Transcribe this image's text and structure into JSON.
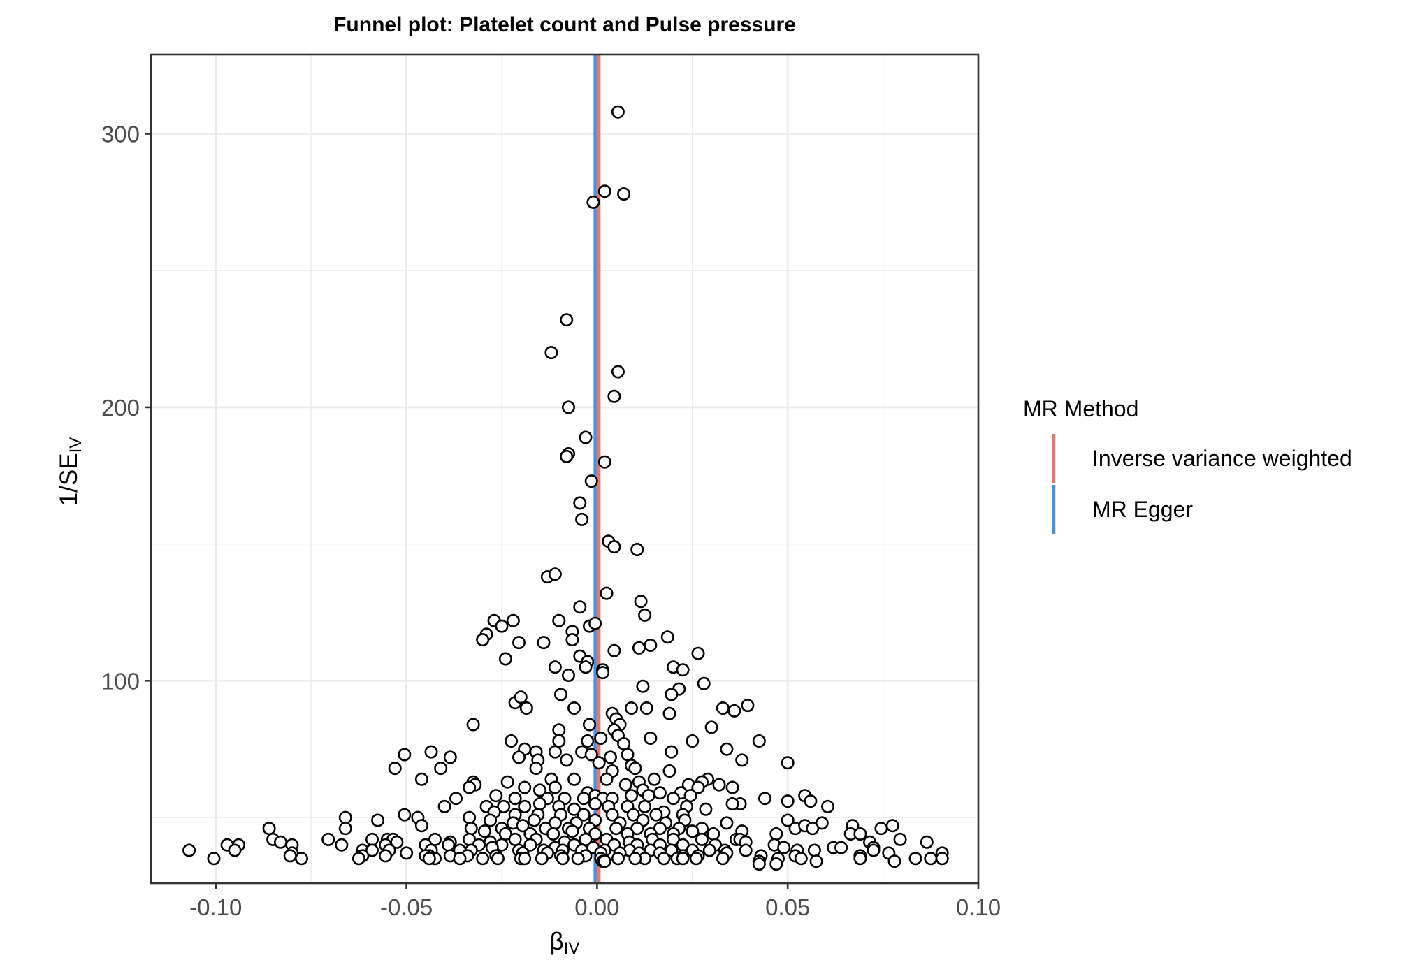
{
  "chart_data": {
    "type": "scatter",
    "title": "Funnel plot: Platelet count and Pulse pressure",
    "xlabel_main": "β",
    "xlabel_sub": "IV",
    "ylabel_main": "1/SE",
    "ylabel_sub": "IV",
    "xlim": [
      -0.117,
      0.1
    ],
    "ylim": [
      26,
      329
    ],
    "x_ticks": [
      -0.1,
      -0.05,
      0.0,
      0.05,
      0.1
    ],
    "x_tick_labels": [
      "-0.10",
      "-0.05",
      "0.00",
      "0.05",
      "0.10"
    ],
    "y_ticks": [
      100,
      200,
      300
    ],
    "y_tick_labels": [
      "100",
      "200",
      "300"
    ],
    "grid": true,
    "legend": {
      "title": "MR Method",
      "position": "right",
      "entries": [
        {
          "name": "Inverse variance weighted",
          "color": "#E8766D"
        },
        {
          "name": "MR Egger",
          "color": "#4A90E2"
        }
      ]
    },
    "lines": [
      {
        "name": "Inverse variance weighted",
        "x": 0.0005,
        "color": "#E8766D"
      },
      {
        "name": "MR Egger",
        "x": -0.0005,
        "color": "#4A90E2"
      }
    ],
    "points": [
      [
        0.0055,
        308
      ],
      [
        0.002,
        279
      ],
      [
        0.007,
        278
      ],
      [
        -0.001,
        275
      ],
      [
        -0.008,
        232
      ],
      [
        -0.012,
        220
      ],
      [
        0.0055,
        213
      ],
      [
        -0.0075,
        200
      ],
      [
        0.0045,
        204
      ],
      [
        -0.003,
        189
      ],
      [
        -0.0075,
        183
      ],
      [
        -0.008,
        182
      ],
      [
        0.002,
        180
      ],
      [
        -0.0015,
        173
      ],
      [
        -0.0045,
        165
      ],
      [
        -0.004,
        159
      ],
      [
        0.003,
        151
      ],
      [
        0.0045,
        149
      ],
      [
        0.0105,
        148
      ],
      [
        -0.013,
        138
      ],
      [
        -0.011,
        139
      ],
      [
        0.0025,
        132
      ],
      [
        -0.0045,
        127
      ],
      [
        0.0115,
        129
      ],
      [
        -0.027,
        122
      ],
      [
        -0.022,
        122
      ],
      [
        -0.025,
        120
      ],
      [
        -0.01,
        122
      ],
      [
        -0.0065,
        118
      ],
      [
        -0.029,
        117
      ],
      [
        -0.03,
        115
      ],
      [
        -0.0205,
        114
      ],
      [
        -0.0065,
        115
      ],
      [
        -0.002,
        120
      ],
      [
        -0.0005,
        121
      ],
      [
        0.0125,
        124
      ],
      [
        0.0185,
        116
      ],
      [
        -0.014,
        114
      ],
      [
        0.011,
        112
      ],
      [
        0.014,
        113
      ],
      [
        0.0045,
        111
      ],
      [
        0.0265,
        110
      ],
      [
        -0.024,
        108
      ],
      [
        -0.0045,
        109
      ],
      [
        -0.0025,
        107
      ],
      [
        -0.011,
        105
      ],
      [
        -0.003,
        105
      ],
      [
        0.0015,
        104
      ],
      [
        0.02,
        105
      ],
      [
        0.0225,
        104
      ],
      [
        0.0015,
        103
      ],
      [
        -0.0075,
        102
      ],
      [
        0.012,
        98
      ],
      [
        0.0215,
        97
      ],
      [
        0.028,
        99
      ],
      [
        0.0195,
        95
      ],
      [
        -0.0095,
        95
      ],
      [
        -0.0215,
        92
      ],
      [
        -0.02,
        94
      ],
      [
        -0.0185,
        90
      ],
      [
        -0.006,
        90
      ],
      [
        0.009,
        90
      ],
      [
        0.013,
        90
      ],
      [
        0.033,
        90
      ],
      [
        0.036,
        89
      ],
      [
        0.0395,
        91
      ],
      [
        0.019,
        88
      ],
      [
        0.004,
        88
      ],
      [
        0.005,
        86
      ],
      [
        -0.0325,
        84
      ],
      [
        0.006,
        84
      ],
      [
        0.0045,
        82
      ],
      [
        -0.002,
        84
      ],
      [
        -0.01,
        82
      ],
      [
        0.03,
        83
      ],
      [
        -0.0225,
        78
      ],
      [
        -0.01,
        78
      ],
      [
        -0.0025,
        78
      ],
      [
        0.001,
        79
      ],
      [
        0.0055,
        80
      ],
      [
        0.007,
        77
      ],
      [
        0.014,
        79
      ],
      [
        0.025,
        78
      ],
      [
        0.0425,
        78
      ],
      [
        -0.019,
        75
      ],
      [
        -0.016,
        74
      ],
      [
        -0.011,
        74
      ],
      [
        -0.004,
        74
      ],
      [
        -0.0015,
        73
      ],
      [
        0.008,
        73
      ],
      [
        0.0195,
        74
      ],
      [
        0.034,
        75
      ],
      [
        -0.0435,
        74
      ],
      [
        -0.0505,
        73
      ],
      [
        -0.0385,
        72
      ],
      [
        -0.0205,
        72
      ],
      [
        -0.0155,
        71
      ],
      [
        -0.008,
        71
      ],
      [
        0.0005,
        70
      ],
      [
        0.0035,
        72
      ],
      [
        0.009,
        69
      ],
      [
        0.01,
        68
      ],
      [
        0.038,
        71
      ],
      [
        0.05,
        70
      ],
      [
        -0.053,
        68
      ],
      [
        -0.041,
        68
      ],
      [
        -0.016,
        68
      ],
      [
        0.004,
        67
      ],
      [
        0.015,
        64
      ],
      [
        0.019,
        67
      ],
      [
        0.029,
        64
      ],
      [
        -0.046,
        64
      ],
      [
        -0.0325,
        63
      ],
      [
        -0.032,
        62
      ],
      [
        -0.0235,
        63
      ],
      [
        -0.012,
        64
      ],
      [
        -0.006,
        64
      ],
      [
        0.0025,
        64
      ],
      [
        0.011,
        63
      ],
      [
        0.024,
        62
      ],
      [
        0.0275,
        63
      ],
      [
        0.032,
        62
      ],
      [
        0.0355,
        61
      ],
      [
        -0.0335,
        61
      ],
      [
        -0.019,
        61
      ],
      [
        -0.015,
        60
      ],
      [
        -0.011,
        61
      ],
      [
        -0.0025,
        59
      ],
      [
        -0.0005,
        58
      ],
      [
        0.0075,
        62
      ],
      [
        0.012,
        60
      ],
      [
        0.0165,
        59
      ],
      [
        0.022,
        59
      ],
      [
        0.0265,
        61
      ],
      [
        0.0545,
        58
      ],
      [
        -0.037,
        57
      ],
      [
        -0.0265,
        58
      ],
      [
        -0.0215,
        57
      ],
      [
        -0.013,
        57
      ],
      [
        -0.0085,
        57
      ],
      [
        -0.0035,
        57
      ],
      [
        0.0015,
        57
      ],
      [
        0.004,
        57
      ],
      [
        0.009,
        58
      ],
      [
        0.0135,
        58
      ],
      [
        0.02,
        57
      ],
      [
        0.0245,
        58
      ],
      [
        0.0375,
        55
      ],
      [
        0.044,
        57
      ],
      [
        0.05,
        56
      ],
      [
        0.056,
        56
      ],
      [
        -0.04,
        54
      ],
      [
        -0.029,
        54
      ],
      [
        -0.0245,
        54
      ],
      [
        -0.019,
        54
      ],
      [
        -0.015,
        55
      ],
      [
        -0.01,
        54
      ],
      [
        -0.006,
        53
      ],
      [
        -0.0005,
        55
      ],
      [
        0.003,
        54
      ],
      [
        0.008,
        54
      ],
      [
        0.0125,
        54
      ],
      [
        0.0175,
        52
      ],
      [
        0.0235,
        54
      ],
      [
        0.0285,
        53
      ],
      [
        0.0355,
        55
      ],
      [
        0.0605,
        54
      ],
      [
        -0.027,
        52
      ],
      [
        -0.0215,
        51
      ],
      [
        -0.0155,
        51
      ],
      [
        -0.0095,
        51
      ],
      [
        -0.0035,
        51
      ],
      [
        0.004,
        51
      ],
      [
        0.0095,
        51
      ],
      [
        0.0155,
        51
      ],
      [
        0.0225,
        51
      ],
      [
        -0.066,
        50
      ],
      [
        -0.0505,
        51
      ],
      [
        -0.047,
        50
      ],
      [
        -0.0575,
        49
      ],
      [
        -0.0335,
        50
      ],
      [
        -0.028,
        49
      ],
      [
        -0.022,
        48
      ],
      [
        -0.0165,
        49
      ],
      [
        -0.011,
        48
      ],
      [
        -0.0055,
        48
      ],
      [
        -0.0005,
        49
      ],
      [
        0.006,
        48
      ],
      [
        0.012,
        49
      ],
      [
        0.018,
        48
      ],
      [
        0.023,
        49
      ],
      [
        0.034,
        48
      ],
      [
        0.05,
        49
      ],
      [
        0.059,
        48
      ],
      [
        -0.086,
        46
      ],
      [
        -0.066,
        46
      ],
      [
        -0.046,
        47
      ],
      [
        -0.033,
        46
      ],
      [
        -0.025,
        46
      ],
      [
        -0.0195,
        47
      ],
      [
        -0.0135,
        46
      ],
      [
        -0.0075,
        46
      ],
      [
        -0.002,
        46
      ],
      [
        0.005,
        46
      ],
      [
        0.0105,
        46
      ],
      [
        0.0165,
        46
      ],
      [
        0.0215,
        46
      ],
      [
        0.0275,
        46
      ],
      [
        0.038,
        45
      ],
      [
        0.052,
        46
      ],
      [
        0.0545,
        47
      ],
      [
        0.0565,
        46
      ],
      [
        0.067,
        47
      ],
      [
        0.0745,
        46
      ],
      [
        0.0775,
        47
      ],
      [
        -0.0295,
        45
      ],
      [
        -0.024,
        44
      ],
      [
        -0.0175,
        44
      ],
      [
        -0.0115,
        44
      ],
      [
        -0.0065,
        45
      ],
      [
        -0.0005,
        44
      ],
      [
        0.008,
        44
      ],
      [
        0.014,
        44
      ],
      [
        0.02,
        44
      ],
      [
        0.025,
        45
      ],
      [
        0.0305,
        44
      ],
      [
        0.047,
        44
      ],
      [
        0.0665,
        44
      ],
      [
        0.069,
        44
      ],
      [
        -0.085,
        42
      ],
      [
        -0.083,
        41
      ],
      [
        -0.0705,
        42
      ],
      [
        -0.059,
        42
      ],
      [
        -0.055,
        42
      ],
      [
        -0.0535,
        42
      ],
      [
        -0.0425,
        42
      ],
      [
        -0.0385,
        41
      ],
      [
        -0.0335,
        42
      ],
      [
        -0.028,
        41
      ],
      [
        -0.0215,
        42
      ],
      [
        -0.016,
        42
      ],
      [
        -0.0085,
        41
      ],
      [
        -0.003,
        42
      ],
      [
        0.0025,
        42
      ],
      [
        0.0085,
        41
      ],
      [
        0.0145,
        42
      ],
      [
        0.02,
        42
      ],
      [
        0.0275,
        42
      ],
      [
        0.0365,
        42
      ],
      [
        0.0375,
        42
      ],
      [
        0.0465,
        40
      ],
      [
        0.0715,
        41
      ],
      [
        0.0795,
        42
      ],
      [
        0.0865,
        41
      ],
      [
        -0.097,
        40
      ],
      [
        -0.094,
        40
      ],
      [
        -0.08,
        40
      ],
      [
        -0.067,
        40
      ],
      [
        -0.0555,
        40
      ],
      [
        -0.0525,
        41
      ],
      [
        -0.045,
        40
      ],
      [
        -0.039,
        40
      ],
      [
        -0.031,
        40
      ],
      [
        -0.025,
        40
      ],
      [
        -0.0175,
        40
      ],
      [
        -0.011,
        39
      ],
      [
        -0.006,
        40
      ],
      [
        -0.001,
        39
      ],
      [
        0.0045,
        40
      ],
      [
        0.0105,
        40
      ],
      [
        0.0165,
        40
      ],
      [
        0.0225,
        40
      ],
      [
        0.031,
        40
      ],
      [
        0.039,
        41
      ],
      [
        0.049,
        39
      ],
      [
        0.0725,
        39
      ],
      [
        -0.107,
        38
      ],
      [
        -0.095,
        38
      ],
      [
        -0.08,
        37
      ],
      [
        -0.0615,
        38
      ],
      [
        -0.059,
        38
      ],
      [
        -0.0545,
        38
      ],
      [
        -0.0435,
        38
      ],
      [
        -0.036,
        38
      ],
      [
        -0.033,
        38
      ],
      [
        -0.0275,
        39
      ],
      [
        -0.0205,
        38
      ],
      [
        -0.014,
        38
      ],
      [
        -0.009,
        38
      ],
      [
        -0.004,
        38
      ],
      [
        0.002,
        38
      ],
      [
        0.0085,
        38
      ],
      [
        0.014,
        38
      ],
      [
        0.0195,
        38
      ],
      [
        0.025,
        38
      ],
      [
        0.0295,
        38
      ],
      [
        0.0335,
        38
      ],
      [
        0.039,
        38
      ],
      [
        0.0525,
        38
      ],
      [
        0.057,
        38
      ],
      [
        0.062,
        39
      ],
      [
        0.064,
        39
      ],
      [
        0.0725,
        38
      ],
      [
        0.0905,
        37
      ],
      [
        -0.0775,
        35
      ],
      [
        -0.0615,
        36
      ],
      [
        -0.0555,
        36
      ],
      [
        -0.05,
        37
      ],
      [
        -0.044,
        36
      ],
      [
        -0.0385,
        36
      ],
      [
        -0.034,
        36
      ],
      [
        -0.0265,
        36
      ],
      [
        -0.0195,
        37
      ],
      [
        -0.013,
        37
      ],
      [
        -0.0095,
        36
      ],
      [
        -0.003,
        36
      ],
      [
        0.001,
        37
      ],
      [
        0.006,
        37
      ],
      [
        0.011,
        37
      ],
      [
        0.0165,
        37
      ],
      [
        0.0225,
        36
      ],
      [
        0.0265,
        36
      ],
      [
        0.034,
        37
      ],
      [
        0.043,
        36
      ],
      [
        0.052,
        36
      ],
      [
        0.069,
        36
      ],
      [
        0.0765,
        37
      ],
      [
        -0.0805,
        36
      ],
      [
        -0.0625,
        35
      ],
      [
        -0.0425,
        35
      ],
      [
        -0.036,
        35
      ],
      [
        -0.03,
        35
      ],
      [
        -0.026,
        35
      ],
      [
        -0.02,
        35
      ],
      [
        -0.0145,
        35
      ],
      [
        -0.009,
        35
      ],
      [
        -0.005,
        35
      ],
      [
        0.001,
        35
      ],
      [
        0.0055,
        35
      ],
      [
        0.0125,
        35
      ],
      [
        0.0175,
        35
      ],
      [
        0.021,
        35
      ],
      [
        0.026,
        35
      ],
      [
        0.033,
        35
      ],
      [
        0.0425,
        34
      ],
      [
        0.0475,
        35
      ],
      [
        0.0535,
        35
      ],
      [
        0.0575,
        34
      ],
      [
        0.069,
        35
      ],
      [
        0.078,
        34
      ],
      [
        0.0835,
        35
      ],
      [
        0.0875,
        35
      ],
      [
        0.0905,
        35
      ],
      [
        -0.1005,
        35
      ],
      [
        -0.045,
        36
      ],
      [
        -0.044,
        35
      ],
      [
        -0.019,
        35
      ],
      [
        0.0015,
        34
      ],
      [
        0.01,
        35
      ],
      [
        0.047,
        33
      ],
      [
        0.0225,
        35
      ],
      [
        0.0425,
        33
      ],
      [
        0.002,
        34
      ]
    ]
  }
}
